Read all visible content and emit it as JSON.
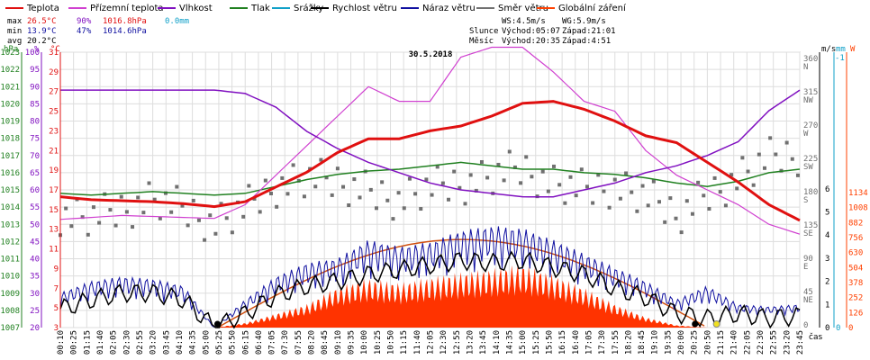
{
  "legend": [
    {
      "label": "Teplota",
      "color": "#e01010"
    },
    {
      "label": "Přízemní teplota",
      "color": "#d040d0"
    },
    {
      "label": "Vlhkost",
      "color": "#8010c0"
    },
    {
      "label": "Tlak",
      "color": "#208020"
    },
    {
      "label": "Srážky",
      "color": "#10a0c8"
    },
    {
      "label": "Rychlost větru",
      "color": "#000000"
    },
    {
      "label": "Náraz větru",
      "color": "#1010a0"
    },
    {
      "label": "Směr větru",
      "color": "#707070"
    },
    {
      "label": "Globální záření",
      "color": "#ff4000"
    }
  ],
  "stats": {
    "max": {
      "label": "max",
      "temp": "26.5°C",
      "hum": "90%",
      "press": "1016.8hPa",
      "rain": "0.0mm"
    },
    "min": {
      "label": "min",
      "temp": "13.9°C",
      "hum": "47%",
      "press": "1014.6hPa"
    },
    "avg": {
      "label": "avg",
      "temp": "20.2°C"
    }
  },
  "wind_info": {
    "ws": "WS:4.5m/s",
    "wg": "WG:5.9m/s"
  },
  "sun_info": {
    "label": "Slunce",
    "rise": "Východ:05:07",
    "set": "Západ:21:01"
  },
  "moon_info": {
    "label": "Měsíc",
    "rise": "Východ:20:35",
    "set": "Západ:4:51"
  },
  "chart_data": {
    "type": "line",
    "title": "30.5.2018",
    "xlabel": "čas",
    "x_ticks": [
      "00:10",
      "00:25",
      "01:15",
      "01:40",
      "02:05",
      "02:30",
      "02:55",
      "03:20",
      "03:45",
      "04:10",
      "04:35",
      "05:00",
      "05:25",
      "05:50",
      "06:15",
      "06:40",
      "07:05",
      "07:30",
      "07:55",
      "08:20",
      "08:45",
      "09:10",
      "09:35",
      "10:00",
      "10:25",
      "10:50",
      "11:15",
      "11:40",
      "12:05",
      "12:30",
      "12:55",
      "13:20",
      "13:45",
      "14:10",
      "14:35",
      "15:00",
      "15:25",
      "15:50",
      "16:15",
      "16:40",
      "17:05",
      "17:30",
      "17:55",
      "18:20",
      "18:45",
      "19:10",
      "19:35",
      "20:00",
      "20:25",
      "20:50",
      "21:15",
      "21:40",
      "22:05",
      "22:30",
      "22:55",
      "23:20",
      "23:45"
    ],
    "axes": {
      "pressure": {
        "unit": "hPa",
        "ticks": [
          "1023",
          "1022",
          "1021",
          "1020",
          "1019",
          "1018",
          "1017",
          "1016",
          "1015",
          "1014",
          "1013",
          "1012",
          "1011",
          "1010",
          "1009",
          "1008",
          "1007"
        ],
        "color": "#208020"
      },
      "humidity": {
        "unit": "%",
        "ticks": [
          "100",
          "95",
          "90",
          "85",
          "80",
          "75",
          "70",
          "65",
          "60",
          "55",
          "50",
          "45",
          "40",
          "35",
          "30",
          "25",
          "20"
        ],
        "color": "#8010c0"
      },
      "temperature": {
        "unit": "°C",
        "ticks": [
          "31",
          "29",
          "27",
          "25",
          "23",
          "21",
          "19",
          "17",
          "15",
          "13",
          "11",
          "9",
          "7",
          "5",
          "3"
        ],
        "color": "#e01010"
      },
      "wind_dir": {
        "ticks": [
          "360 N",
          "315 NW",
          "270 W",
          "225 SW",
          "180 S",
          "135 SE",
          "90 E",
          "45 NE",
          "0"
        ],
        "color": "#707070"
      },
      "wind_speed": {
        "unit": "m/s",
        "ticks": [
          "6",
          "5",
          "4",
          "3",
          "2",
          "1",
          "0"
        ],
        "color": "#000000"
      },
      "rain": {
        "unit": "mm",
        "ticks": [
          "1",
          "0"
        ],
        "color": "#10a0c8"
      },
      "radiation": {
        "unit": "W",
        "ticks": [
          "1134",
          "1008",
          "882",
          "756",
          "630",
          "504",
          "378",
          "252",
          "126",
          "0"
        ],
        "color": "#ff4000"
      }
    },
    "series": [
      {
        "name": "Teplota",
        "unit": "°C",
        "hours": [
          0,
          1,
          2,
          3,
          4,
          5,
          6,
          7,
          8,
          9,
          10,
          11,
          12,
          13,
          14,
          15,
          16,
          17,
          18,
          19,
          20,
          21,
          22,
          23,
          24
        ],
        "values": [
          16.3,
          16.0,
          15.9,
          15.8,
          15.6,
          15.3,
          15.8,
          17.3,
          18.8,
          20.8,
          22.2,
          22.2,
          23.0,
          23.5,
          24.5,
          25.8,
          26.0,
          25.2,
          24.0,
          22.5,
          21.8,
          19.8,
          17.8,
          15.5,
          13.9
        ]
      },
      {
        "name": "Přízemní teplota",
        "unit": "°C",
        "hours": [
          0,
          1,
          2,
          3,
          4,
          5,
          6,
          7,
          8,
          9,
          10,
          11,
          12,
          13,
          14,
          15,
          16,
          17,
          18,
          19,
          20,
          21,
          22,
          23,
          24
        ],
        "values": [
          14.0,
          14.2,
          14.4,
          14.3,
          14.2,
          14.1,
          15.5,
          18.5,
          21.5,
          24.5,
          27.5,
          26.0,
          26.0,
          30.5,
          31.5,
          31.5,
          29.0,
          26.0,
          25.0,
          21.0,
          18.5,
          17.0,
          15.5,
          13.5,
          12.5
        ]
      },
      {
        "name": "Vlhkost",
        "unit": "%",
        "hours": [
          0,
          1,
          2,
          3,
          4,
          5,
          6,
          7,
          8,
          9,
          10,
          11,
          12,
          13,
          14,
          15,
          16,
          17,
          18,
          19,
          20,
          21,
          22,
          23,
          24
        ],
        "values": [
          89,
          89,
          89,
          89,
          89,
          89,
          88,
          84,
          77,
          72,
          68,
          65,
          62,
          60,
          59,
          58,
          58,
          60,
          62,
          65,
          67,
          70,
          74,
          83,
          89
        ]
      },
      {
        "name": "Tlak",
        "unit": "hPa",
        "hours": [
          0,
          1,
          2,
          3,
          4,
          5,
          6,
          7,
          8,
          9,
          10,
          11,
          12,
          13,
          14,
          15,
          16,
          17,
          18,
          19,
          20,
          21,
          22,
          23,
          24
        ],
        "values": [
          1014.8,
          1014.7,
          1014.8,
          1014.9,
          1014.8,
          1014.7,
          1014.8,
          1015.2,
          1015.6,
          1015.9,
          1016.1,
          1016.2,
          1016.4,
          1016.6,
          1016.4,
          1016.2,
          1016.2,
          1016.0,
          1015.9,
          1015.7,
          1015.4,
          1015.2,
          1015.5,
          1016.0,
          1016.2
        ]
      },
      {
        "name": "Rychlost větru",
        "unit": "m/s",
        "hours": [
          0,
          1,
          2,
          3,
          4,
          5,
          6,
          7,
          8,
          9,
          10,
          11,
          12,
          13,
          14,
          15,
          16,
          17,
          18,
          19,
          20,
          21,
          22,
          23,
          24
        ],
        "values": [
          0.8,
          1.2,
          1.5,
          1.5,
          1.2,
          0.0,
          0.6,
          1.4,
          1.8,
          2.0,
          2.3,
          2.5,
          2.7,
          2.9,
          2.8,
          2.9,
          2.6,
          2.3,
          1.7,
          1.3,
          0.6,
          0.4,
          0.6,
          0.4,
          0.5
        ]
      },
      {
        "name": "Náraz větru",
        "unit": "m/s",
        "hours": [
          0,
          1,
          2,
          3,
          4,
          5,
          6,
          7,
          8,
          9,
          10,
          11,
          12,
          13,
          14,
          15,
          16,
          17,
          18,
          19,
          20,
          21,
          22,
          23,
          24
        ],
        "values": [
          1.5,
          2.0,
          2.2,
          2.1,
          1.8,
          0.0,
          1.2,
          2.2,
          2.8,
          3.0,
          3.8,
          3.5,
          3.7,
          4.2,
          4.4,
          4.3,
          3.8,
          3.2,
          2.6,
          2.0,
          1.2,
          1.8,
          1.0,
          0.9,
          1.0
        ]
      },
      {
        "name": "Směr větru",
        "unit": "°",
        "hours": [
          0,
          1,
          2,
          3,
          4,
          5,
          6,
          7,
          8,
          9,
          10,
          11,
          12,
          13,
          14,
          15,
          16,
          17,
          18,
          19,
          20,
          21,
          22,
          23,
          24
        ],
        "values": [
          155,
          150,
          160,
          175,
          160,
          140,
          160,
          190,
          200,
          195,
          185,
          175,
          190,
          195,
          205,
          215,
          195,
          185,
          190,
          175,
          150,
          180,
          205,
          230,
          235
        ]
      },
      {
        "name": "Globální záření",
        "unit": "W",
        "hours": [
          5,
          6,
          7,
          8,
          9,
          10,
          11,
          12,
          13,
          14,
          15,
          16,
          17,
          18,
          19,
          20,
          21
        ],
        "values": [
          0,
          40,
          120,
          200,
          350,
          420,
          380,
          430,
          470,
          500,
          540,
          450,
          340,
          200,
          90,
          20,
          0
        ]
      }
    ]
  }
}
